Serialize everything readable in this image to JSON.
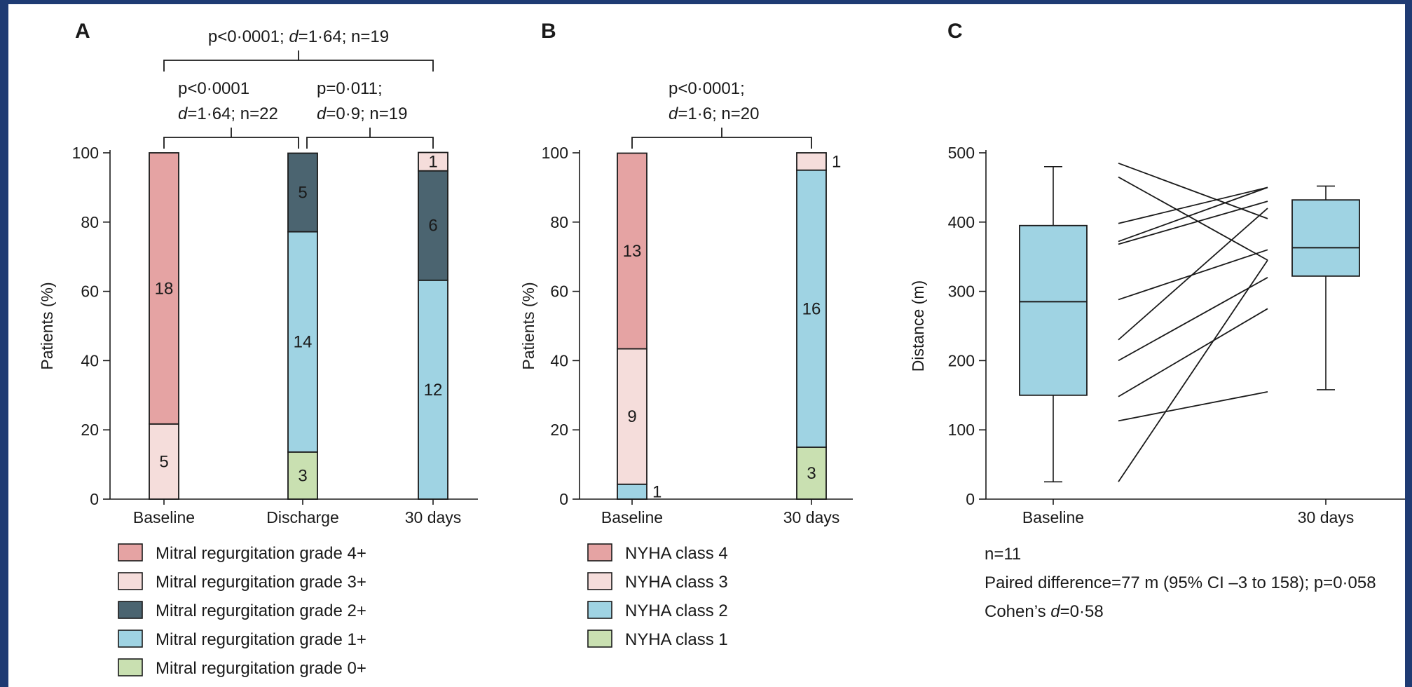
{
  "colors": {
    "grade4": "#e5a3a3",
    "grade3": "#f5dddb",
    "grade2": "#4b6470",
    "grade1": "#9fd3e3",
    "grade0": "#c9e0b1",
    "box": "#9fd3e3",
    "frame": "#1f3b73"
  },
  "chart_data": [
    {
      "panel": "A",
      "type": "bar",
      "stacked": true,
      "ylabel": "Patients (%)",
      "ylim": [
        0,
        100
      ],
      "yticks": [
        "0",
        "20",
        "40",
        "60",
        "80",
        "100"
      ],
      "categories": [
        "Baseline",
        "Discharge",
        "30 days"
      ],
      "series": [
        {
          "name": "Mitral regurgitation grade 0+",
          "color_key": "grade0",
          "values": [
            0,
            13.6,
            0
          ],
          "labels": [
            "",
            "3",
            ""
          ]
        },
        {
          "name": "Mitral regurgitation grade 1+",
          "color_key": "grade1",
          "values": [
            0,
            63.6,
            63.2
          ],
          "labels": [
            "",
            "14",
            "12"
          ]
        },
        {
          "name": "Mitral regurgitation grade 2+",
          "color_key": "grade2",
          "values": [
            0,
            22.7,
            31.6
          ],
          "labels": [
            "",
            "5",
            "6"
          ]
        },
        {
          "name": "Mitral regurgitation grade 3+",
          "color_key": "grade3",
          "values": [
            21.7,
            0,
            5.3
          ],
          "labels": [
            "5",
            "",
            "1"
          ]
        },
        {
          "name": "Mitral regurgitation grade 4+",
          "color_key": "grade4",
          "values": [
            78.3,
            0,
            0
          ],
          "labels": [
            "18",
            "",
            ""
          ]
        }
      ],
      "legend": [
        {
          "label": "Mitral regurgitation grade 4+",
          "color_key": "grade4"
        },
        {
          "label": "Mitral regurgitation grade 3+",
          "color_key": "grade3"
        },
        {
          "label": "Mitral regurgitation grade 2+",
          "color_key": "grade2"
        },
        {
          "label": "Mitral regurgitation grade 1+",
          "color_key": "grade1"
        },
        {
          "label": "Mitral regurgitation grade 0+",
          "color_key": "grade0"
        }
      ],
      "comparisons": [
        {
          "from": 0,
          "to": 2,
          "tier": 2,
          "lines": [
            "p<0·0001; d=1·64; n=19"
          ]
        },
        {
          "from": 0,
          "to": 1,
          "tier": 1,
          "lines": [
            "p<0·0001",
            "d=1·64; n=22"
          ]
        },
        {
          "from": 1,
          "to": 2,
          "tier": 1,
          "lines": [
            "p=0·011;",
            "d=0·9; n=19"
          ]
        }
      ]
    },
    {
      "panel": "B",
      "type": "bar",
      "stacked": true,
      "ylabel": "Patients (%)",
      "ylim": [
        0,
        100
      ],
      "yticks": [
        "0",
        "20",
        "40",
        "60",
        "80",
        "100"
      ],
      "categories": [
        "Baseline",
        "30 days"
      ],
      "series": [
        {
          "name": "NYHA class 1",
          "color_key": "grade0",
          "values": [
            0,
            15
          ],
          "labels": [
            "",
            "3"
          ]
        },
        {
          "name": "NYHA class 2",
          "color_key": "grade1",
          "values": [
            4.3,
            80
          ],
          "labels": [
            "1",
            "16"
          ],
          "outside": [
            true,
            false
          ]
        },
        {
          "name": "NYHA class 3",
          "color_key": "grade3",
          "values": [
            39.1,
            5
          ],
          "labels": [
            "9",
            "1"
          ],
          "outside": [
            false,
            true
          ]
        },
        {
          "name": "NYHA class 4",
          "color_key": "grade4",
          "values": [
            56.5,
            0
          ],
          "labels": [
            "13",
            ""
          ]
        }
      ],
      "legend": [
        {
          "label": "NYHA class 4",
          "color_key": "grade4"
        },
        {
          "label": "NYHA class 3",
          "color_key": "grade3"
        },
        {
          "label": "NYHA class 2",
          "color_key": "grade1"
        },
        {
          "label": "NYHA class 1",
          "color_key": "grade0"
        }
      ],
      "comparisons": [
        {
          "from": 0,
          "to": 1,
          "tier": 1,
          "lines": [
            "p<0·0001;",
            "d=1·6; n=20"
          ]
        }
      ]
    },
    {
      "panel": "C",
      "type": "box",
      "ylabel": "Distance (m)",
      "ylim": [
        0,
        500
      ],
      "yticks": [
        "0",
        "100",
        "200",
        "300",
        "400",
        "500"
      ],
      "categories": [
        "Baseline",
        "30 days"
      ],
      "boxes": [
        {
          "min": 25,
          "q1": 150,
          "median": 285,
          "q3": 395,
          "max": 480
        },
        {
          "min": 158,
          "q1": 322,
          "median": 363,
          "q3": 432,
          "max": 452
        }
      ],
      "paired_lines": [
        [
          485,
          405
        ],
        [
          465,
          345
        ],
        [
          398,
          450
        ],
        [
          372,
          450
        ],
        [
          368,
          430
        ],
        [
          288,
          360
        ],
        [
          230,
          420
        ],
        [
          200,
          320
        ],
        [
          148,
          275
        ],
        [
          113,
          155
        ],
        [
          25,
          345
        ]
      ],
      "stats": [
        "n=11",
        "Paired difference=77 m (95% CI –3 to 158); p=0·058",
        "Cohen’s d=0·58"
      ]
    }
  ]
}
